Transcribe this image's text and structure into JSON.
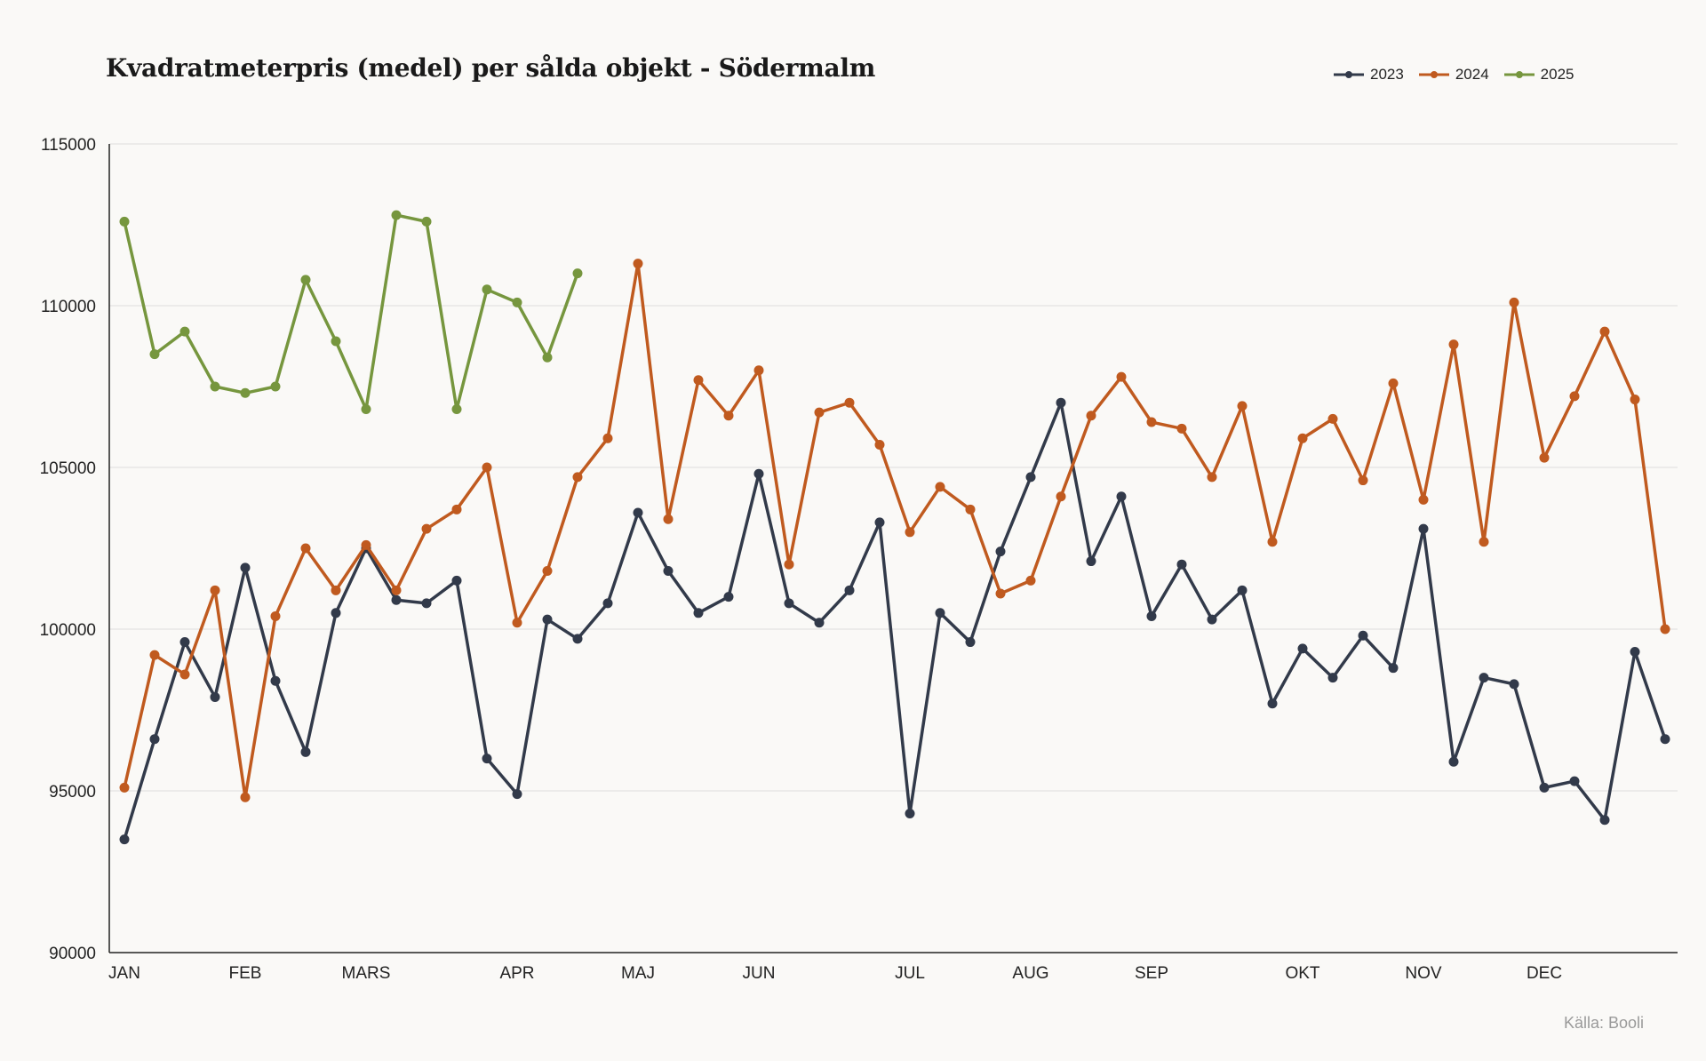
{
  "chart_data": {
    "type": "line",
    "title": "Kvadratmeterpris (medel) per sålda objekt - Södermalm",
    "xlabel": "",
    "ylabel": "",
    "ylim": [
      90000,
      115000
    ],
    "yticks": [
      "115000",
      "110000",
      "105000",
      "100000",
      "95000",
      "90000"
    ],
    "yticks_values": [
      115000,
      110000,
      105000,
      100000,
      95000,
      90000
    ],
    "x_points": 52,
    "month_labels": [
      {
        "label": "JAN",
        "index": 0
      },
      {
        "label": "FEB",
        "index": 4
      },
      {
        "label": "MARS",
        "index": 8
      },
      {
        "label": "APR",
        "index": 13
      },
      {
        "label": "MAJ",
        "index": 17
      },
      {
        "label": "JUN",
        "index": 21
      },
      {
        "label": "JUL",
        "index": 26
      },
      {
        "label": "AUG",
        "index": 30
      },
      {
        "label": "SEP",
        "index": 34
      },
      {
        "label": "OKT",
        "index": 39
      },
      {
        "label": "NOV",
        "index": 43
      },
      {
        "label": "DEC",
        "index": 47
      }
    ],
    "grid": true,
    "legend_position": "top-right",
    "series": [
      {
        "name": "2023",
        "color": "#323a4a",
        "values": [
          93500,
          96600,
          99600,
          97900,
          101900,
          98400,
          96200,
          100500,
          102500,
          100900,
          100800,
          101500,
          96000,
          94900,
          100300,
          99700,
          100800,
          103600,
          101800,
          100500,
          101000,
          104800,
          100800,
          100200,
          101200,
          103300,
          94300,
          100500,
          99600,
          102400,
          104700,
          107000,
          102100,
          104100,
          100400,
          102000,
          100300,
          101200,
          97700,
          99400,
          98500,
          99800,
          98800,
          103100,
          95900,
          98500,
          98300,
          95100,
          95300,
          94100,
          99300,
          96600
        ]
      },
      {
        "name": "2024",
        "color": "#c05a1f",
        "values": [
          95100,
          99200,
          98600,
          101200,
          94800,
          100400,
          102500,
          101200,
          102600,
          101200,
          103100,
          103700,
          105000,
          100200,
          101800,
          104700,
          105900,
          111300,
          103400,
          107700,
          106600,
          108000,
          102000,
          106700,
          107000,
          105700,
          103000,
          104400,
          103700,
          101100,
          101500,
          104100,
          106600,
          107800,
          106400,
          106200,
          104700,
          106900,
          102700,
          105900,
          106500,
          104600,
          107600,
          104000,
          108800,
          102700,
          110100,
          105300,
          107200,
          109200,
          107100,
          100000
        ]
      },
      {
        "name": "2025",
        "color": "#76963e",
        "values": [
          112600,
          108500,
          109200,
          107500,
          107300,
          107500,
          110800,
          108900,
          106800,
          112800,
          112600,
          106800,
          110500,
          110100,
          108400,
          111000
        ]
      }
    ]
  },
  "source": "Källa: Booli"
}
